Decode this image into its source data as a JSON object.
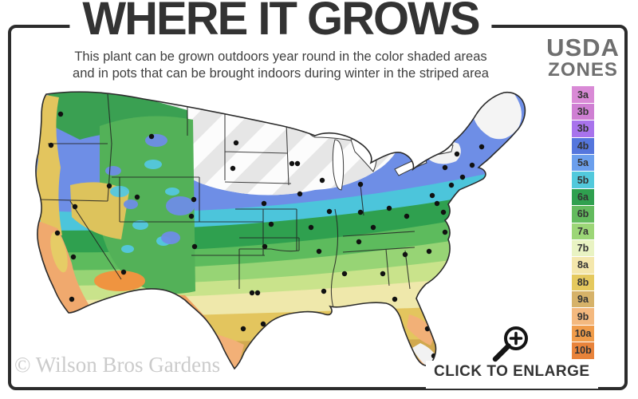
{
  "header": {
    "title": "WHERE IT GROWS",
    "subtitle_line1": "This plant can be grown outdoors year round in the color shaded areas",
    "subtitle_line2": "and in pots that can be brought indoors during winter in the striped area"
  },
  "legend": {
    "title_line1": "USDA",
    "title_line2": "ZONES",
    "zones": [
      {
        "label": "3a",
        "color": "#d98ad6"
      },
      {
        "label": "3b",
        "color": "#cf7fd3"
      },
      {
        "label": "3b",
        "color": "#a873ec"
      },
      {
        "label": "4b",
        "color": "#5576dd"
      },
      {
        "label": "5a",
        "color": "#6b9fed"
      },
      {
        "label": "5b",
        "color": "#52c9dc"
      },
      {
        "label": "6a",
        "color": "#2fa04f"
      },
      {
        "label": "6b",
        "color": "#63bb5e"
      },
      {
        "label": "7a",
        "color": "#9cd677"
      },
      {
        "label": "7b",
        "color": "#e9f3c3"
      },
      {
        "label": "8a",
        "color": "#f4e7ac"
      },
      {
        "label": "8b",
        "color": "#e5c95e"
      },
      {
        "label": "9a",
        "color": "#d6b269"
      },
      {
        "label": "9b",
        "color": "#f4b97f"
      },
      {
        "label": "10a",
        "color": "#f09c4a"
      },
      {
        "label": "10b",
        "color": "#e8833b"
      }
    ]
  },
  "map": {
    "striped_area_stripe_color": "#e6e6e6",
    "city_dot_color": "#111111"
  },
  "footer": {
    "watermark": "© Wilson Bros Gardens",
    "enlarge_label": "CLICK TO ENLARGE",
    "magnifier_icon": "magnifying-glass-plus-icon"
  }
}
